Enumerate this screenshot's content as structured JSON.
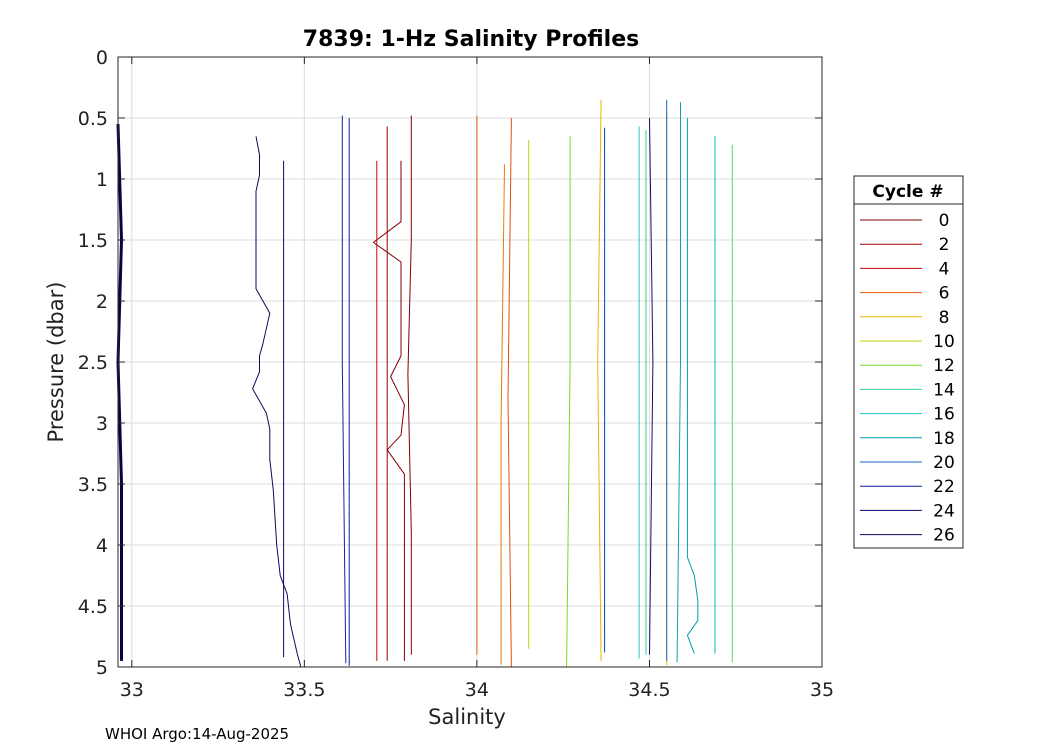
{
  "footer": "WHOI Argo:14-Aug-2025",
  "chart_data": {
    "type": "line",
    "title": "7839: 1-Hz Salinity Profiles",
    "xlabel": "Salinity",
    "ylabel": "Pressure (dbar)",
    "xlim": [
      32.96,
      35
    ],
    "ylim": [
      5,
      0
    ],
    "y_reversed": true,
    "grid": true,
    "xticks": [
      33,
      33.5,
      34,
      34.5,
      35
    ],
    "xtick_labels": [
      "33",
      "33.5",
      "34",
      "34.5",
      "35"
    ],
    "yticks": [
      0,
      0.5,
      1,
      1.5,
      2,
      2.5,
      3,
      3.5,
      4,
      4.5,
      5
    ],
    "ytick_labels": [
      "0",
      "0.5",
      "1",
      "1.5",
      "2",
      "2.5",
      "3",
      "3.5",
      "4",
      "4.5",
      "5"
    ],
    "legend": {
      "title": "Cycle #",
      "position": "outside-right",
      "entries": [
        "0",
        "2",
        "4",
        "6",
        "8",
        "10",
        "12",
        "14",
        "16",
        "18",
        "20",
        "22",
        "24",
        "26"
      ]
    },
    "series": [
      {
        "name": "0",
        "color": "#7f0000",
        "points": [
          [
            33.81,
            0.48
          ],
          [
            33.81,
            1.5
          ],
          [
            33.8,
            2.6
          ],
          [
            33.81,
            3.9
          ],
          [
            33.81,
            4.9
          ]
        ]
      },
      {
        "name": "0",
        "color": "#7f0000",
        "points": [
          [
            33.78,
            0.85
          ],
          [
            33.78,
            1.35
          ],
          [
            33.7,
            1.52
          ],
          [
            33.78,
            1.68
          ],
          [
            33.78,
            2.45
          ],
          [
            33.75,
            2.62
          ],
          [
            33.79,
            2.85
          ],
          [
            33.78,
            3.1
          ],
          [
            33.74,
            3.22
          ],
          [
            33.79,
            3.42
          ],
          [
            33.79,
            4.95
          ]
        ]
      },
      {
        "name": "2",
        "color": "#a00000",
        "points": [
          [
            33.74,
            0.57
          ],
          [
            33.74,
            4.95
          ]
        ]
      },
      {
        "name": "4",
        "color": "#c80a0a",
        "points": [
          [
            33.71,
            0.85
          ],
          [
            33.71,
            4.95
          ]
        ]
      },
      {
        "name": "6",
        "color": "#e65a0a",
        "points": [
          [
            34.0,
            0.48
          ],
          [
            34.0,
            2.5
          ],
          [
            34.0,
            4.9
          ]
        ]
      },
      {
        "name": "6",
        "color": "#e64a12",
        "points": [
          [
            34.1,
            0.5
          ],
          [
            34.09,
            2.8
          ],
          [
            34.1,
            5.0
          ]
        ]
      },
      {
        "name": "6",
        "color": "#eb7814",
        "points": [
          [
            34.08,
            0.88
          ],
          [
            34.07,
            3.0
          ],
          [
            34.07,
            4.98
          ]
        ]
      },
      {
        "name": "8",
        "color": "#e8b400",
        "points": [
          [
            34.36,
            0.35
          ],
          [
            34.35,
            2.5
          ],
          [
            34.36,
            4.95
          ]
        ]
      },
      {
        "name": "10",
        "color": "#c8d200",
        "points": [
          [
            34.55,
            0.45
          ],
          [
            34.55,
            3.5
          ],
          [
            34.55,
            4.99
          ]
        ]
      },
      {
        "name": "10",
        "color": "#b4dc14",
        "points": [
          [
            34.15,
            0.68
          ],
          [
            34.15,
            2.5
          ],
          [
            34.15,
            4.85
          ]
        ]
      },
      {
        "name": "12",
        "color": "#78dc28",
        "points": [
          [
            34.27,
            0.65
          ],
          [
            34.27,
            2.5
          ],
          [
            34.26,
            5.0
          ]
        ]
      },
      {
        "name": "12",
        "color": "#55e055",
        "points": [
          [
            34.74,
            0.72
          ],
          [
            34.74,
            3.0
          ],
          [
            34.74,
            4.96
          ]
        ]
      },
      {
        "name": "14",
        "color": "#32d28c",
        "points": [
          [
            34.49,
            0.6
          ],
          [
            34.49,
            3.0
          ],
          [
            34.49,
            4.9
          ]
        ]
      },
      {
        "name": "16",
        "color": "#1ec8c8",
        "points": [
          [
            34.47,
            0.57
          ],
          [
            34.47,
            2.5
          ],
          [
            34.47,
            4.93
          ]
        ]
      },
      {
        "name": "16",
        "color": "#00bebe",
        "points": [
          [
            34.69,
            0.65
          ],
          [
            34.69,
            3.0
          ],
          [
            34.69,
            4.89
          ]
        ]
      },
      {
        "name": "18",
        "color": "#009bb4",
        "points": [
          [
            34.61,
            0.5
          ],
          [
            34.61,
            4.1
          ],
          [
            34.63,
            4.25
          ],
          [
            34.64,
            4.45
          ],
          [
            34.64,
            4.62
          ],
          [
            34.61,
            4.74
          ],
          [
            34.63,
            4.89
          ]
        ]
      },
      {
        "name": "18",
        "color": "#14a0aa",
        "points": [
          [
            34.59,
            0.37
          ],
          [
            34.59,
            2.5
          ],
          [
            34.58,
            4.96
          ]
        ]
      },
      {
        "name": "20",
        "color": "#1e64c8",
        "points": [
          [
            34.55,
            0.35
          ],
          [
            34.55,
            2.5
          ],
          [
            34.55,
            4.95
          ]
        ]
      },
      {
        "name": "20",
        "color": "#0046b4",
        "points": [
          [
            34.37,
            0.58
          ],
          [
            34.37,
            3.2
          ],
          [
            34.37,
            4.88
          ]
        ]
      },
      {
        "name": "22",
        "color": "#0a1e9b",
        "points": [
          [
            33.63,
            0.5
          ],
          [
            33.63,
            2.5
          ],
          [
            33.63,
            4.99
          ]
        ]
      },
      {
        "name": "22",
        "color": "#0f2896",
        "points": [
          [
            33.61,
            0.48
          ],
          [
            33.61,
            2.5
          ],
          [
            33.62,
            4.97
          ]
        ]
      },
      {
        "name": "24",
        "color": "#0a0a6e",
        "points": [
          [
            33.44,
            0.85
          ],
          [
            33.44,
            2.5
          ],
          [
            33.44,
            4.92
          ]
        ]
      },
      {
        "name": "24",
        "color": "#140a78",
        "points": [
          [
            34.5,
            0.5
          ],
          [
            34.51,
            2.5
          ],
          [
            34.5,
            4.9
          ]
        ]
      },
      {
        "name": "26",
        "color": "#0a0a5a",
        "points": [
          [
            33.36,
            0.65
          ],
          [
            33.37,
            0.8
          ],
          [
            33.37,
            0.97
          ],
          [
            33.36,
            1.1
          ],
          [
            33.36,
            1.9
          ],
          [
            33.39,
            2.05
          ],
          [
            33.4,
            2.1
          ],
          [
            33.38,
            2.35
          ],
          [
            33.37,
            2.45
          ],
          [
            33.37,
            2.58
          ],
          [
            33.35,
            2.72
          ],
          [
            33.37,
            2.82
          ],
          [
            33.39,
            2.92
          ],
          [
            33.4,
            3.05
          ],
          [
            33.4,
            3.3
          ],
          [
            33.41,
            3.55
          ],
          [
            33.42,
            4.0
          ],
          [
            33.43,
            4.25
          ],
          [
            33.45,
            4.4
          ],
          [
            33.46,
            4.65
          ],
          [
            33.48,
            4.9
          ],
          [
            33.49,
            5.0
          ]
        ]
      },
      {
        "name": "26",
        "color": "#050544",
        "width": 3,
        "points": [
          [
            32.96,
            0.55
          ],
          [
            32.97,
            1.5
          ],
          [
            32.96,
            2.5
          ],
          [
            32.97,
            3.5
          ],
          [
            32.97,
            4.95
          ]
        ]
      }
    ]
  }
}
